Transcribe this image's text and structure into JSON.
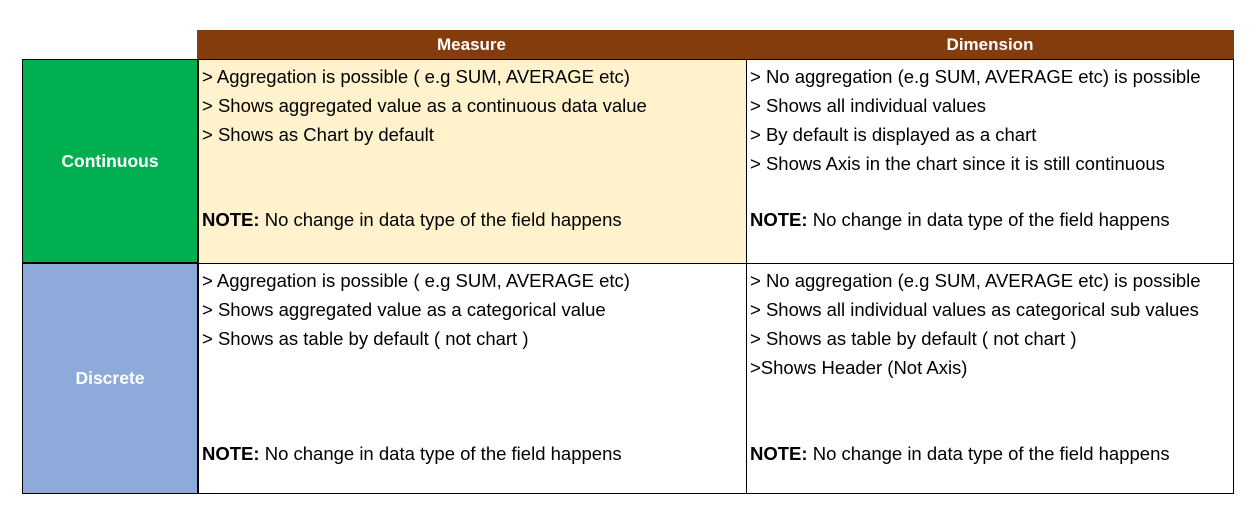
{
  "header": {
    "measure": "Measure",
    "dimension": "Dimension"
  },
  "rows": {
    "continuous": "Continuous",
    "discrete": "Discrete"
  },
  "continuous_measure": {
    "lines": [
      "> Aggregation is possible ( e.g SUM, AVERAGE etc)",
      "> Shows aggregated value as a continuous data value",
      "> Shows as Chart by default"
    ],
    "note_label": "NOTE:",
    "note_text": " No change in data type of the field happens"
  },
  "continuous_dimension": {
    "lines": [
      "> No aggregation (e.g SUM, AVERAGE etc) is possible",
      "> Shows all individual values",
      "> By default is displayed as a chart",
      "> Shows Axis in the chart since it is still continuous"
    ],
    "note_label": "NOTE:",
    "note_text": " No change in data type of the field happens"
  },
  "discrete_measure": {
    "lines": [
      "> Aggregation is possible ( e.g SUM, AVERAGE etc)",
      "> Shows aggregated value as a categorical value",
      "> Shows as table by default ( not chart )"
    ],
    "note_label": "NOTE:",
    "note_text": " No change in data type of the field happens"
  },
  "discrete_dimension": {
    "lines": [
      "> No aggregation (e.g SUM, AVERAGE etc) is possible",
      "> Shows all individual values as categorical sub values",
      "> Shows as table by default ( not chart )",
      ">Shows Header (Not Axis)"
    ],
    "note_label": "NOTE:",
    "note_text": " No change in data type of the field happens"
  },
  "colors": {
    "header_bg": "#843c0c",
    "continuous_bg": "#00b050",
    "discrete_bg": "#8eaadb",
    "highlight_cell_bg": "#fff2cc"
  }
}
